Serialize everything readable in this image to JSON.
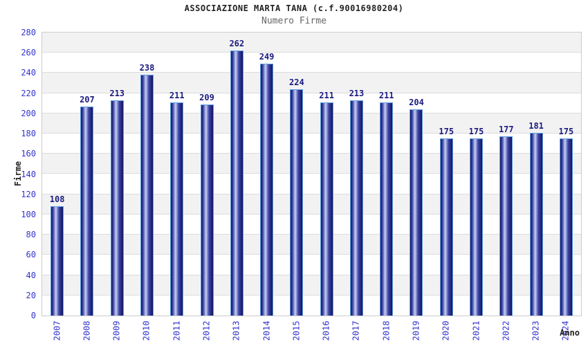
{
  "chart_data": {
    "type": "bar",
    "title": "ASSOCIAZIONE MARTA TANA (c.f.90016980204)",
    "subtitle": "Numero Firme",
    "xlabel": "Anno",
    "ylabel": "Firme",
    "categories": [
      "2007",
      "2008",
      "2009",
      "2010",
      "2011",
      "2012",
      "2013",
      "2014",
      "2015",
      "2016",
      "2017",
      "2018",
      "2019",
      "2020",
      "2021",
      "2022",
      "2023",
      "2024"
    ],
    "values": [
      108,
      207,
      213,
      238,
      211,
      209,
      262,
      249,
      224,
      211,
      213,
      211,
      204,
      175,
      175,
      177,
      181,
      175
    ],
    "ylim": [
      0,
      280
    ],
    "ytick_step": 20,
    "grid": true,
    "legend_position": "none",
    "bands_alternating": true,
    "colors": {
      "title": "#222222",
      "subtitle": "#666666",
      "tick_label": "#3333cc",
      "value_label": "#1a1a80",
      "band": "#f2f2f2",
      "grid_line": "#dcdcdc",
      "plot_border": "#cccccc",
      "axis_label": "#222222",
      "bar_dark": "#14145f",
      "bar_mid": "#3b44a5",
      "bar_light": "#c9d0f2",
      "bar_edge": "#5e9fe0"
    }
  }
}
